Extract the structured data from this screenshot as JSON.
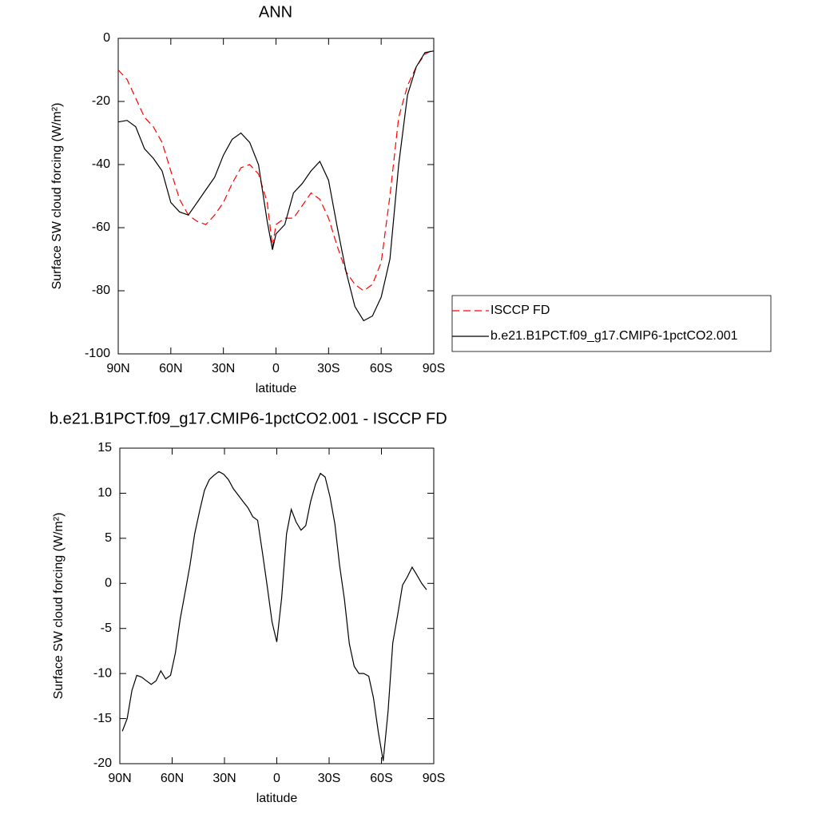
{
  "chart_data": [
    {
      "type": "line",
      "title": "ANN",
      "x_label": "latitude",
      "y_label": "Surface SW cloud forcing (W/m²)",
      "x": [
        90,
        85,
        80,
        75,
        70,
        65,
        60,
        55,
        50,
        45,
        40,
        35,
        30,
        25,
        20,
        15,
        10,
        5,
        2,
        0,
        -5,
        -10,
        -15,
        -20,
        -25,
        -30,
        -35,
        -40,
        -45,
        -50,
        -55,
        -60,
        -65,
        -70,
        -75,
        -80,
        -85,
        -90
      ],
      "series": [
        {
          "name": "ISCCP FD",
          "color": "#ff0000",
          "style": "dashed",
          "values": [
            -10,
            -13,
            -19,
            -25,
            -28,
            -33,
            -42,
            -51,
            -56,
            -58,
            -59,
            -56,
            -52,
            -46,
            -41,
            -40,
            -43,
            -52,
            -66,
            -59,
            -57,
            -57,
            -53,
            -49,
            -51,
            -57,
            -66,
            -74,
            -78,
            -80,
            -78,
            -71,
            -50,
            -25,
            -15,
            -9,
            -5,
            -3.5
          ]
        },
        {
          "name": "b.e21.B1PCT.f09_g17.CMIP6-1pctCO2.001",
          "color": "#000000",
          "style": "solid",
          "values": [
            -26.5,
            -26,
            -28,
            -35,
            -38,
            -42,
            -52,
            -55,
            -56,
            -52,
            -48,
            -44,
            -37,
            -32,
            -30,
            -33,
            -40,
            -58,
            -67,
            -62,
            -59,
            -49,
            -46,
            -42,
            -39,
            -45,
            -60,
            -74,
            -85,
            -89.5,
            -88,
            -82,
            -70,
            -40,
            -18,
            -9,
            -4.5,
            -4
          ]
        }
      ],
      "xlim": [
        90,
        -90
      ],
      "xticks": [
        {
          "value": 90,
          "label": "90N"
        },
        {
          "value": 60,
          "label": "60N"
        },
        {
          "value": 30,
          "label": "30N"
        },
        0,
        {
          "value": -30,
          "label": "30S"
        },
        {
          "value": -60,
          "label": "60S"
        },
        {
          "value": -90,
          "label": "90S"
        }
      ],
      "ylim": [
        -100,
        0
      ],
      "yticks": [
        0,
        -20,
        -40,
        -60,
        -80,
        -100
      ],
      "legend": "right"
    },
    {
      "type": "line",
      "title": "b.e21.B1PCT.f09_g17.CMIP6-1pctCO2.001 - ISCCP FD",
      "x_label": "latitude",
      "y_label": "Surface SW cloud forcing (W/m²)",
      "x": [
        88.6,
        85.8,
        83.1,
        80.3,
        77.5,
        74.8,
        72.0,
        69.2,
        66.5,
        63.7,
        60.9,
        58.1,
        55.4,
        52.6,
        49.8,
        47.1,
        44.3,
        41.5,
        38.7,
        36.0,
        33.2,
        30.4,
        27.7,
        24.9,
        22.1,
        19.4,
        16.6,
        13.8,
        11.0,
        8.3,
        5.5,
        2.7,
        0,
        -2.8,
        -5.6,
        -8.3,
        -11.1,
        -13.9,
        -16.6,
        -19.4,
        -22.2,
        -25.0,
        -27.7,
        -30.5,
        -33.3,
        -36.0,
        -38.8,
        -41.6,
        -44.4,
        -47.1,
        -49.9,
        -52.7,
        -55.4,
        -58.2,
        -61.0,
        -63.8,
        -66.5,
        -69.3,
        -72.1,
        -74.8,
        -77.6,
        -80.4,
        -83.1,
        -85.9
      ],
      "series": [
        {
          "color": "#000000",
          "style": "solid",
          "values": [
            -16.4,
            -15,
            -11.9,
            -10.2,
            -10.4,
            -10.8,
            -11.2,
            -10.8,
            -9.7,
            -10.6,
            -10.2,
            -7.7,
            -4,
            -1,
            2,
            5.5,
            8,
            10.3,
            11.5,
            12,
            12.4,
            12.1,
            11.5,
            10.5,
            9.8,
            9.1,
            8.4,
            7.4,
            7,
            3.5,
            -0.3,
            -4.3,
            -6.5,
            -1.6,
            5.5,
            8.2,
            6.8,
            5.9,
            6.4,
            9.1,
            11,
            12.2,
            11.8,
            9.6,
            6.6,
            2,
            -1.8,
            -6.7,
            -9.2,
            -10,
            -10,
            -10.3,
            -12.7,
            -16.5,
            -19.7,
            -14.2,
            -6.6,
            -3.5,
            -0.2,
            0.7,
            1.8,
            0.9,
            0,
            -0.7
          ]
        }
      ],
      "xlim": [
        90,
        -90
      ],
      "xticks": [
        {
          "value": 90,
          "label": "90N"
        },
        {
          "value": 60,
          "label": "60N"
        },
        {
          "value": 30,
          "label": "30N"
        },
        0,
        {
          "value": -30,
          "label": "30S"
        },
        {
          "value": -60,
          "label": "60S"
        },
        {
          "value": -90,
          "label": "90S"
        }
      ],
      "ylim": [
        -20,
        15
      ],
      "yticks": [
        15,
        10,
        5,
        0,
        -5,
        -10,
        -15,
        -20
      ]
    }
  ]
}
